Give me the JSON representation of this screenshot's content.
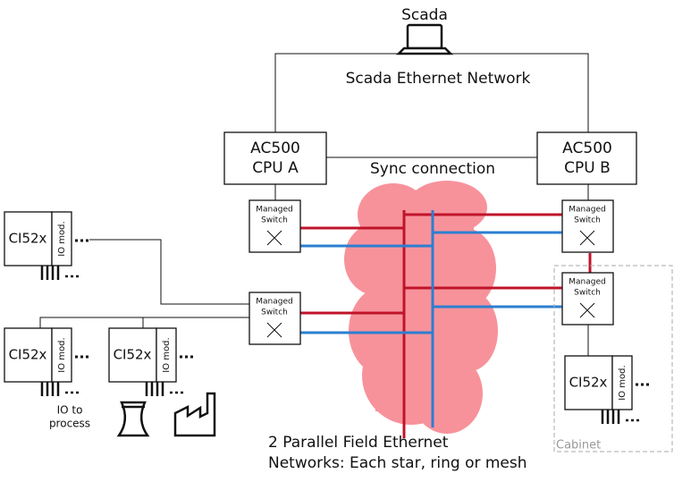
{
  "scada": {
    "label": "Scada",
    "network": "Scada Ethernet Network"
  },
  "cpus": [
    {
      "line1": "AC500",
      "line2": "CPU A"
    },
    {
      "line1": "AC500",
      "line2": "CPU B"
    }
  ],
  "sync": "Sync connection",
  "switches": [
    {
      "line1": "Managed",
      "line2": "Switch"
    },
    {
      "line1": "Managed",
      "line2": "Switch"
    },
    {
      "line1": "Managed",
      "line2": "Switch"
    },
    {
      "line1": "Managed",
      "line2": "Switch"
    }
  ],
  "modules": [
    {
      "label": "CI52x",
      "io": "IO mod."
    },
    {
      "label": "CI52x",
      "io": "IO mod."
    },
    {
      "label": "CI52x",
      "io": "IO mod."
    },
    {
      "label": "CI52x",
      "io": "IO mod."
    }
  ],
  "io_note": {
    "line1": "IO  to",
    "line2": "process"
  },
  "field_networks": {
    "line1": "2 Parallel Field Ethernet",
    "line2": "Networks: Each star, ring or mesh"
  },
  "cabinet": "Cabinet"
}
